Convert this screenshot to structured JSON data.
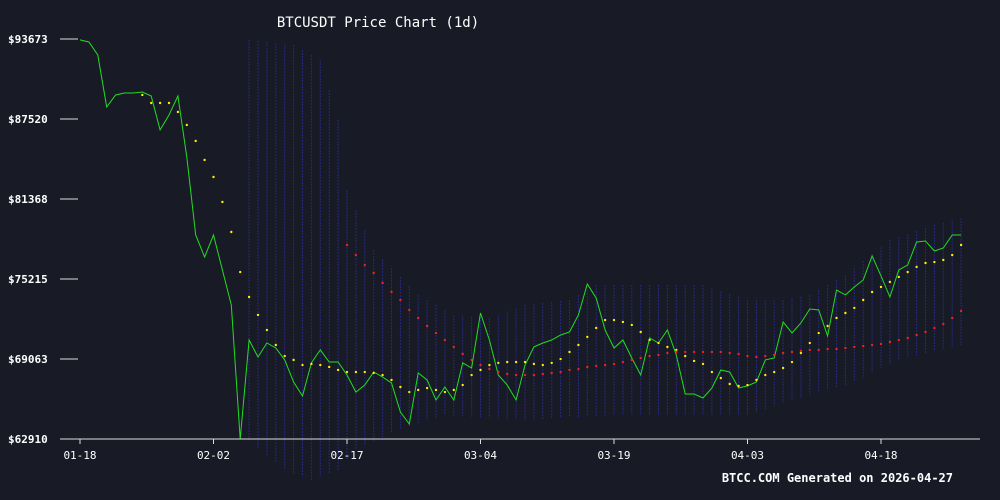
{
  "chart_data": {
    "type": "line",
    "title": "BTCUSDT Price Chart (1d)",
    "footer": "BTCC.COM Generated on 2026-04-27",
    "categories": [
      "01-18",
      null,
      null,
      null,
      null,
      null,
      null,
      null,
      null,
      null,
      null,
      null,
      null,
      null,
      null,
      "02-02",
      null,
      null,
      null,
      null,
      null,
      null,
      null,
      null,
      null,
      null,
      null,
      null,
      null,
      null,
      "02-17",
      null,
      null,
      null,
      null,
      null,
      null,
      null,
      null,
      null,
      null,
      null,
      null,
      null,
      null,
      "03-04",
      null,
      null,
      null,
      null,
      null,
      null,
      null,
      null,
      null,
      null,
      null,
      null,
      null,
      null,
      "03-19",
      null,
      null,
      null,
      null,
      null,
      null,
      null,
      null,
      null,
      null,
      null,
      null,
      null,
      null,
      "04-03",
      null,
      null,
      null,
      null,
      null,
      null,
      null,
      null,
      null,
      null,
      null,
      null,
      null,
      null,
      "04-18",
      null,
      null,
      null,
      null,
      null,
      null,
      null,
      null,
      null
    ],
    "ylim": [
      62910,
      93673
    ],
    "yticks": [
      {
        "value": 62910,
        "label": "$62910"
      },
      {
        "value": 69063,
        "label": "$69063"
      },
      {
        "value": 75215,
        "label": "$75215"
      },
      {
        "value": 81368,
        "label": "$81368"
      },
      {
        "value": 87520,
        "label": "$87520"
      },
      {
        "value": 93673,
        "label": "$93673"
      }
    ],
    "band": {
      "color": "#2a2a8c",
      "upper": [
        null,
        null,
        null,
        null,
        null,
        null,
        null,
        null,
        null,
        null,
        null,
        null,
        null,
        null,
        null,
        null,
        null,
        null,
        null,
        93600,
        93520,
        93450,
        93370,
        93300,
        93220,
        92830,
        92450,
        92060,
        89750,
        87440,
        82060,
        80520,
        78990,
        77450,
        76760,
        76070,
        75370,
        74680,
        73990,
        73610,
        73220,
        72840,
        72450,
        72390,
        72340,
        72280,
        72220,
        72470,
        72720,
        72970,
        73220,
        73300,
        73370,
        73450,
        73520,
        73600,
        73980,
        74370,
        74750,
        74750,
        74750,
        74750,
        74750,
        74750,
        74750,
        74750,
        74750,
        74750,
        74750,
        74750,
        74750,
        74520,
        74290,
        74060,
        73830,
        73600,
        73600,
        73600,
        73600,
        73600,
        73730,
        73860,
        73990,
        74370,
        74760,
        75140,
        75520,
        76060,
        76600,
        77130,
        77670,
        78210,
        78440,
        78670,
        78910,
        79140,
        79370,
        79550,
        79730,
        79910
      ],
      "lower": [
        null,
        null,
        null,
        null,
        null,
        null,
        null,
        null,
        null,
        null,
        null,
        null,
        null,
        null,
        null,
        null,
        null,
        null,
        null,
        62830,
        62250,
        61680,
        61100,
        60530,
        60270,
        60020,
        59760,
        60020,
        60270,
        60530,
        61340,
        62140,
        62450,
        62760,
        63060,
        63370,
        63680,
        63900,
        64110,
        64330,
        64540,
        64760,
        64720,
        64670,
        64630,
        64590,
        64540,
        64500,
        64460,
        64410,
        64370,
        64410,
        64450,
        64490,
        64530,
        64570,
        64600,
        64640,
        64680,
        64720,
        64760,
        64760,
        64760,
        64760,
        64760,
        64760,
        64760,
        64760,
        64760,
        64760,
        64760,
        64760,
        64760,
        64760,
        64760,
        64760,
        64990,
        65220,
        65450,
        65680,
        65910,
        66100,
        66290,
        66490,
        66680,
        66870,
        67060,
        67380,
        67700,
        68030,
        68350,
        68670,
        68990,
        69150,
        69320,
        69480,
        69650,
        69810,
        69980,
        70140
      ]
    },
    "series": [
      {
        "style": "line",
        "color": "#22dd22",
        "values": [
          93600,
          93440,
          92440,
          88440,
          89370,
          89520,
          89520,
          89600,
          89290,
          86680,
          87830,
          89290,
          84600,
          78600,
          76910,
          78600,
          75910,
          73220,
          62910,
          70520,
          69220,
          70290,
          69910,
          68990,
          67290,
          66220,
          68760,
          69760,
          68830,
          68830,
          67830,
          66520,
          67060,
          68060,
          67680,
          67220,
          64990,
          64060,
          67990,
          67450,
          65910,
          66910,
          65910,
          68760,
          68370,
          72600,
          70520,
          67830,
          67060,
          65910,
          68600,
          69990,
          70290,
          70520,
          70910,
          71140,
          72450,
          74830,
          73750,
          71290,
          69910,
          70520,
          69140,
          67830,
          70680,
          70290,
          71290,
          69370,
          66370,
          66370,
          66060,
          66830,
          68220,
          68060,
          66830,
          66990,
          67290,
          68990,
          69140,
          71910,
          71060,
          71830,
          72910,
          72830,
          70830,
          74370,
          73990,
          74600,
          75140,
          76990,
          75450,
          73830,
          75910,
          76290,
          78060,
          78140,
          77370,
          77600,
          78600,
          78600
        ]
      },
      {
        "style": "dots",
        "color": "#ffee00",
        "values": [
          null,
          null,
          null,
          null,
          null,
          null,
          null,
          89370,
          88750,
          88750,
          88750,
          88060,
          87060,
          85830,
          84370,
          83060,
          81140,
          78830,
          75750,
          73830,
          72450,
          71290,
          70140,
          69290,
          68990,
          68600,
          68680,
          68600,
          68450,
          68220,
          68060,
          68060,
          68060,
          67990,
          67830,
          67450,
          66910,
          66520,
          66680,
          66830,
          66680,
          66520,
          66680,
          67060,
          67830,
          68220,
          68600,
          68760,
          68830,
          68830,
          68830,
          68680,
          68600,
          68760,
          69060,
          69600,
          70140,
          70760,
          71450,
          72060,
          72060,
          71910,
          71680,
          71140,
          70520,
          70290,
          69990,
          69760,
          69290,
          68910,
          68680,
          68060,
          67600,
          67140,
          66990,
          67060,
          67450,
          67830,
          68060,
          68370,
          68830,
          69520,
          70290,
          71060,
          71600,
          72220,
          72600,
          72990,
          73600,
          74220,
          74600,
          74990,
          75370,
          75750,
          76140,
          76450,
          76520,
          76680,
          77060,
          77830
        ]
      },
      {
        "style": "dots",
        "color": "#ee2222",
        "values": [
          null,
          null,
          null,
          null,
          null,
          null,
          null,
          null,
          null,
          null,
          null,
          null,
          null,
          null,
          null,
          null,
          null,
          null,
          null,
          null,
          null,
          null,
          null,
          null,
          null,
          null,
          null,
          null,
          null,
          null,
          77830,
          77060,
          76290,
          75680,
          74910,
          74220,
          73600,
          72830,
          72220,
          71600,
          71060,
          70520,
          69990,
          69450,
          68990,
          68600,
          68290,
          68060,
          67910,
          67830,
          67830,
          67830,
          67910,
          67990,
          68060,
          68220,
          68290,
          68450,
          68520,
          68600,
          68680,
          68830,
          68990,
          69140,
          69290,
          69370,
          69520,
          69600,
          69600,
          69600,
          69600,
          69600,
          69600,
          69520,
          69450,
          69290,
          69220,
          69290,
          69370,
          69520,
          69600,
          69680,
          69760,
          69760,
          69830,
          69830,
          69910,
          69990,
          70060,
          70140,
          70220,
          70370,
          70520,
          70680,
          70910,
          71140,
          71450,
          71750,
          72220,
          72750
        ]
      }
    ]
  }
}
